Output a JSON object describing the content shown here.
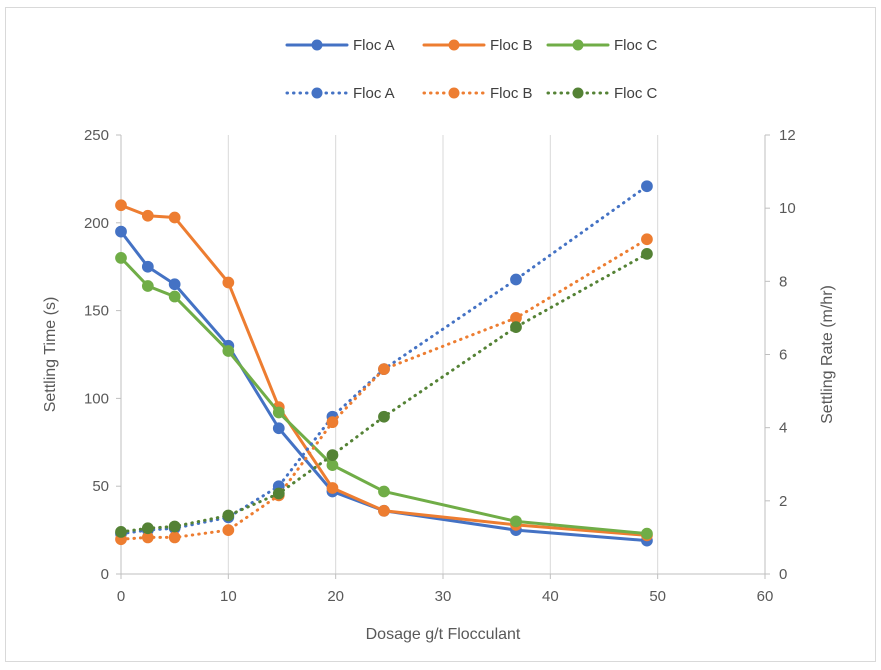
{
  "chart_data": {
    "type": "line",
    "xlabel": "Dosage g/t Flocculant",
    "ylabel_left": "Settling Time (s)",
    "ylabel_right": "Settling Rate (m/hr)",
    "xlim": [
      0,
      60
    ],
    "ylim_left": [
      0,
      250
    ],
    "ylim_right": [
      0,
      12
    ],
    "x_ticks": [
      0,
      10,
      20,
      30,
      40,
      50,
      60
    ],
    "y_left_ticks": [
      0,
      50,
      100,
      150,
      200,
      250
    ],
    "y_right_ticks": [
      0,
      2,
      4,
      6,
      8,
      10,
      12
    ],
    "grid": "vertical",
    "legend_position": "top",
    "series": [
      {
        "name": "Floc A",
        "axis": "left",
        "style": "solid",
        "color": "#4472C4",
        "x": [
          0,
          2.5,
          5,
          10,
          14.7,
          19.7,
          24.5,
          36.8,
          49
        ],
        "y": [
          195,
          175,
          165,
          130,
          83,
          47,
          36,
          25,
          19
        ]
      },
      {
        "name": "Floc B",
        "axis": "left",
        "style": "solid",
        "color": "#ED7D31",
        "x": [
          0,
          2.5,
          5,
          10,
          14.7,
          19.7,
          24.5,
          36.8,
          49
        ],
        "y": [
          210,
          204,
          203,
          166,
          95,
          49,
          36,
          28,
          22
        ]
      },
      {
        "name": "Floc C",
        "axis": "left",
        "style": "solid",
        "color": "#70AD47",
        "x": [
          0,
          2.5,
          5,
          10,
          14.7,
          19.7,
          24.5,
          36.8,
          49
        ],
        "y": [
          180,
          164,
          158,
          127,
          92,
          62,
          47,
          30,
          23
        ]
      },
      {
        "name": "Floc A",
        "axis": "right",
        "style": "dotted",
        "color": "#4472C4",
        "x": [
          0,
          2.5,
          5,
          10,
          14.7,
          19.7,
          24.5,
          36.8,
          49
        ],
        "y": [
          1.1,
          1.2,
          1.25,
          1.55,
          2.4,
          4.3,
          5.6,
          8.05,
          10.6
        ]
      },
      {
        "name": "Floc B",
        "axis": "right",
        "style": "dotted",
        "color": "#ED7D31",
        "x": [
          0,
          2.5,
          5,
          10,
          14.7,
          19.7,
          24.5,
          36.8,
          49
        ],
        "y": [
          0.95,
          1.0,
          1.0,
          1.2,
          2.15,
          4.15,
          5.6,
          7.0,
          9.15
        ]
      },
      {
        "name": "Floc C",
        "axis": "right",
        "style": "dotted",
        "color": "#548235",
        "x": [
          0,
          2.5,
          5,
          10,
          14.7,
          19.7,
          24.5,
          36.8,
          49
        ],
        "y": [
          1.15,
          1.25,
          1.3,
          1.6,
          2.2,
          3.25,
          4.3,
          6.75,
          8.75
        ]
      }
    ]
  }
}
